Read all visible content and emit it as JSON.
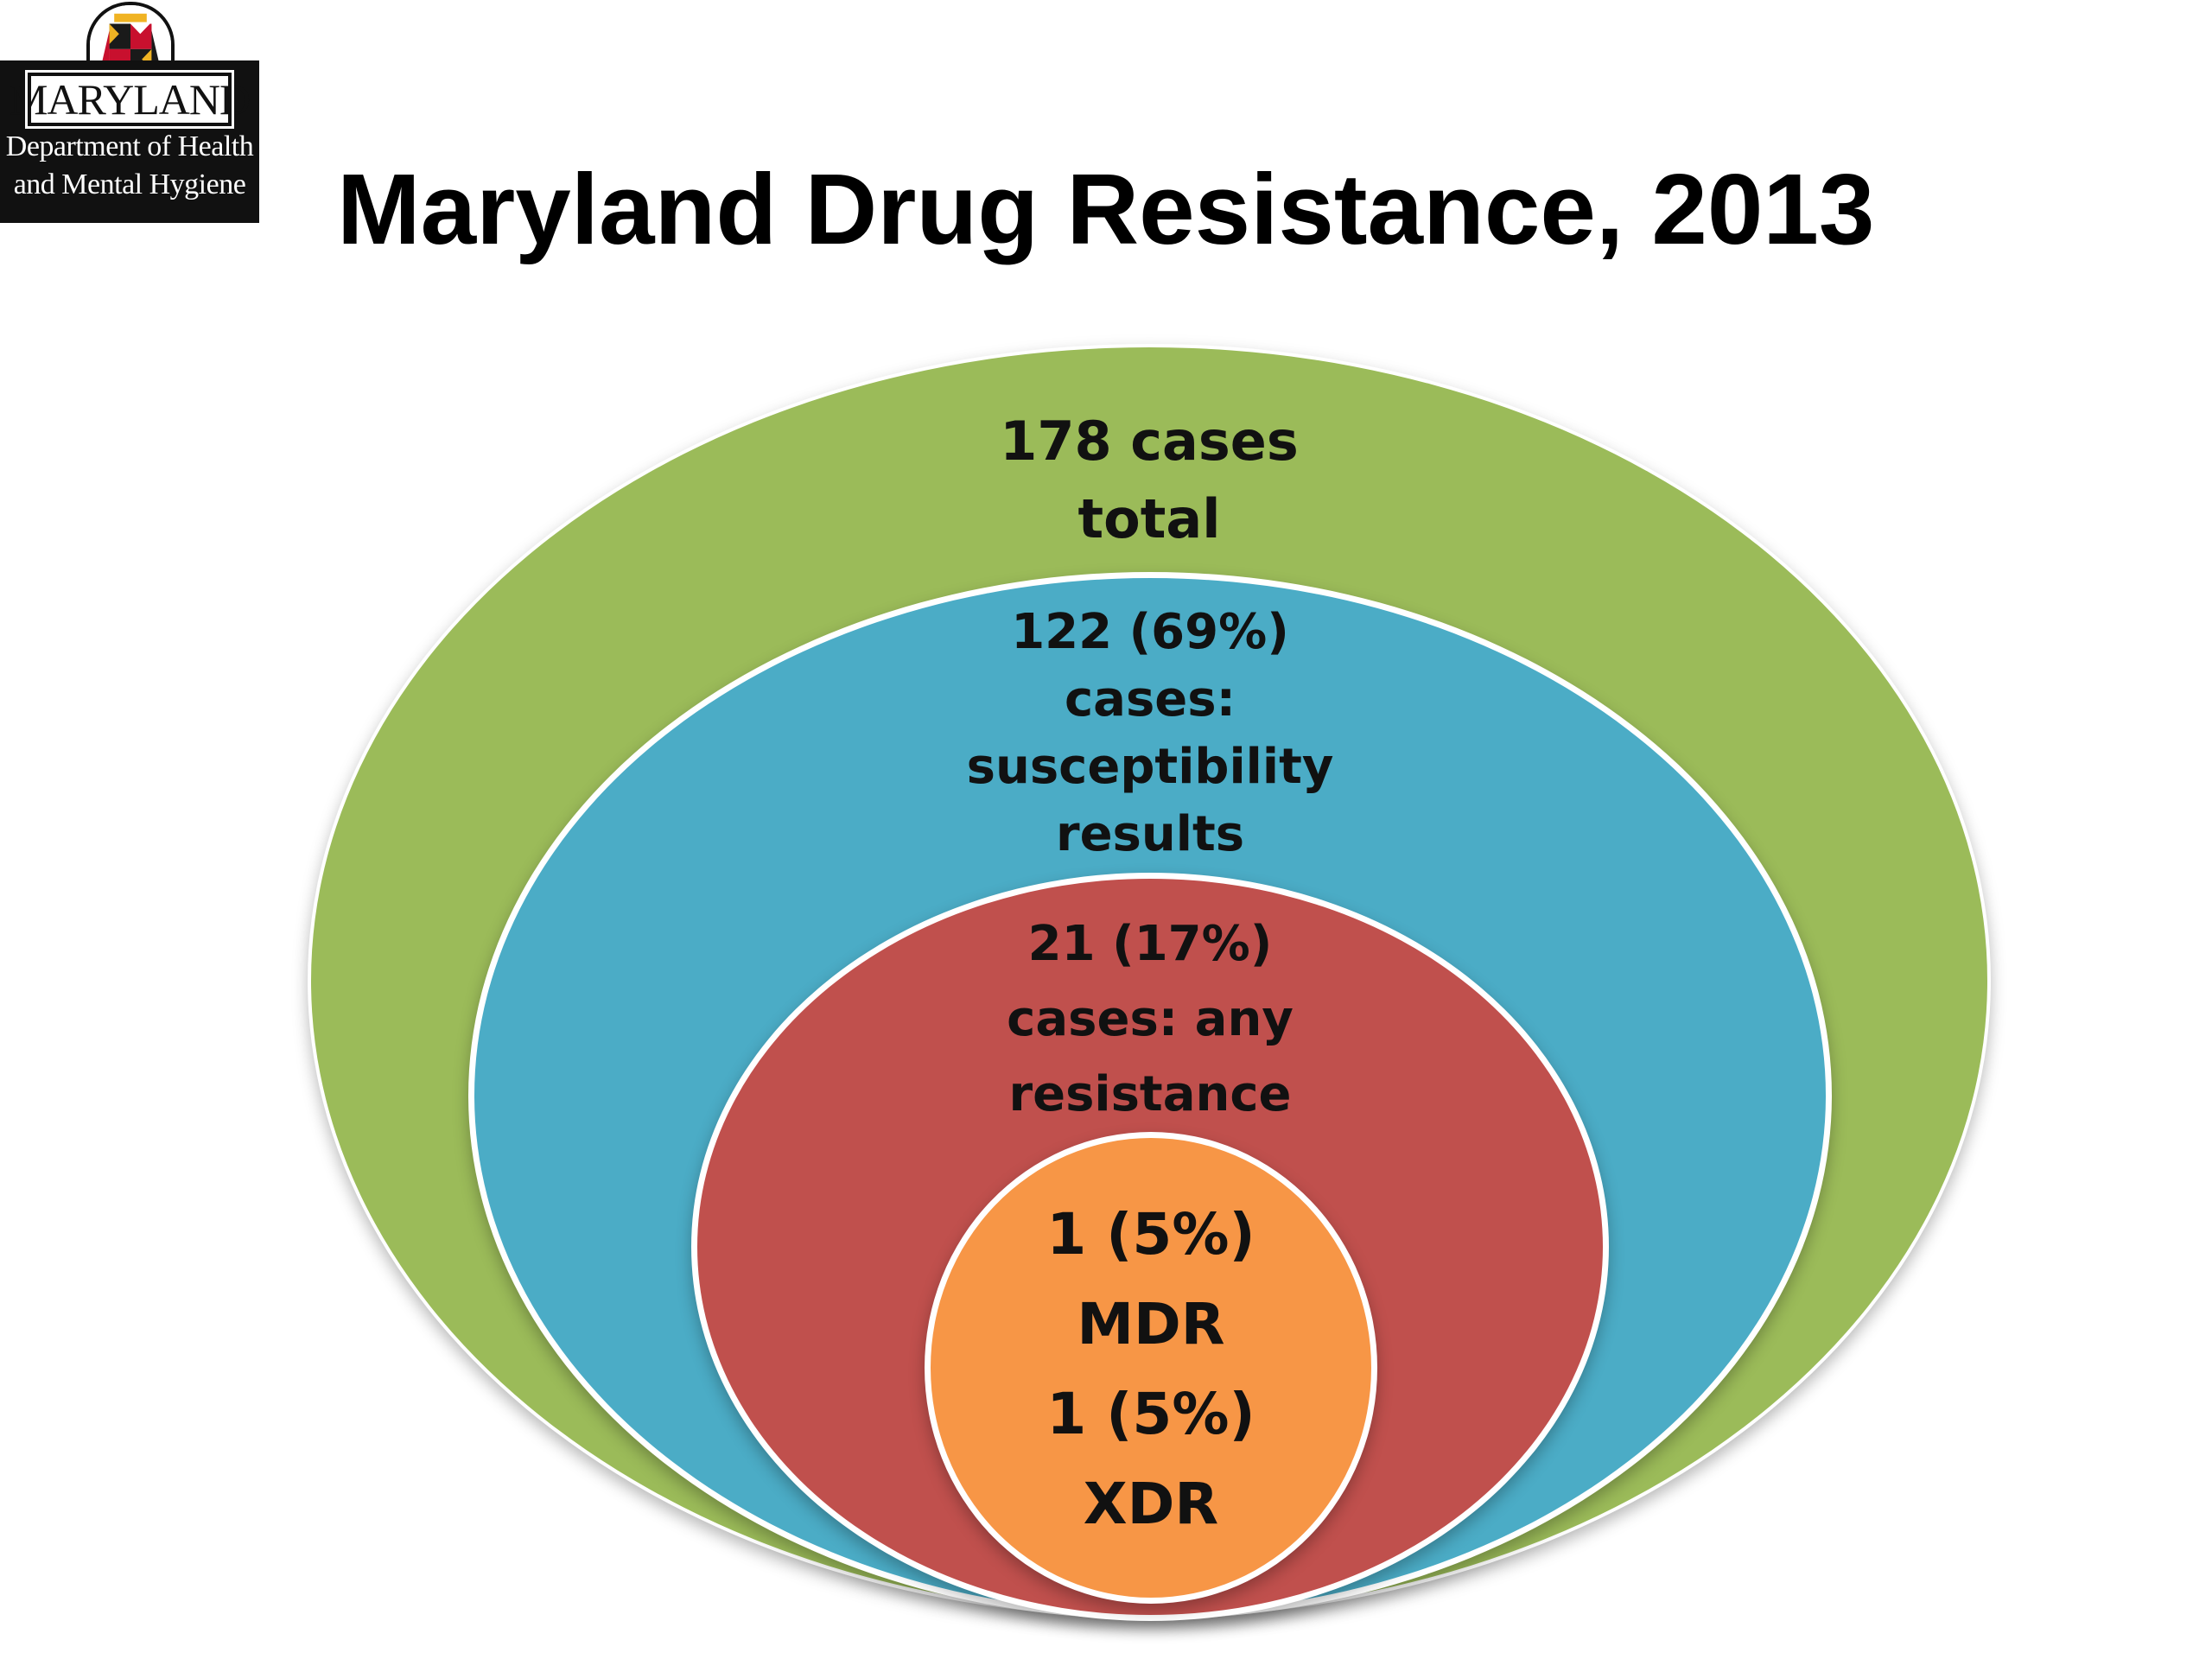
{
  "logo": {
    "name": "MARYLAND",
    "line1": "Department of Health",
    "line2": "and Mental Hygiene"
  },
  "title": "Maryland Drug Resistance, 2013",
  "colors": {
    "total": "#9BBB59",
    "susceptibility": "#4BACC6",
    "resistance": "#C0504D",
    "mdr_xdr": "#F79646"
  },
  "circles": {
    "total": {
      "line1": "178 cases",
      "line2": "total"
    },
    "susceptibility": {
      "line1": "122 (69%)",
      "line2": "cases:",
      "line3": "susceptibility",
      "line4": "results"
    },
    "resistance": {
      "line1": "21 (17%)",
      "line2": "cases: any",
      "line3": "resistance"
    },
    "mdr_xdr": {
      "line1": "1 (5%)",
      "line2": "MDR",
      "line3": "1 (5%)",
      "line4": "XDR"
    }
  }
}
